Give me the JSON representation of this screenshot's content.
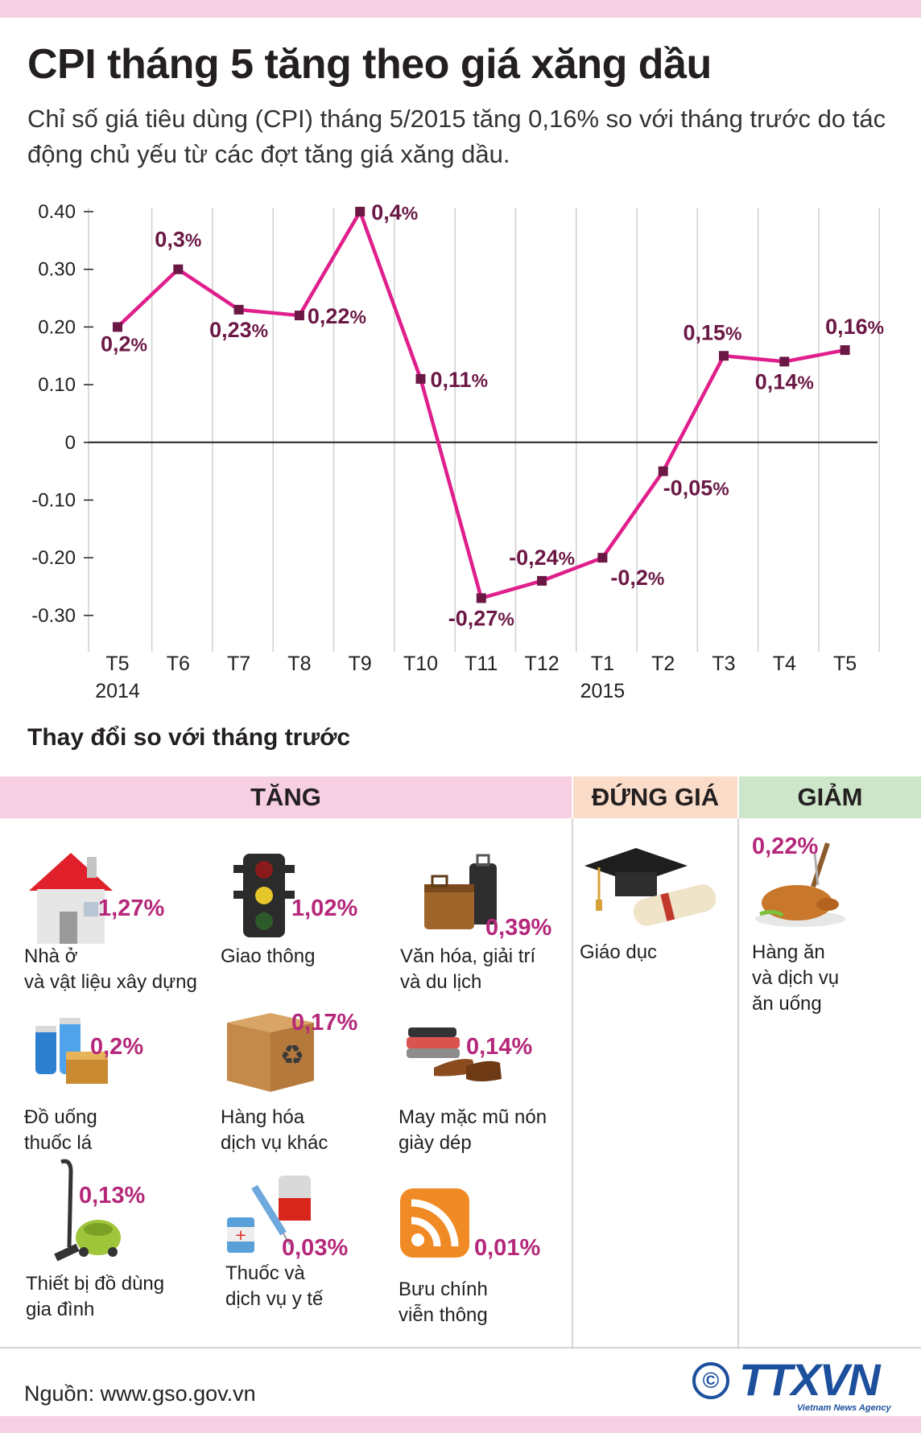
{
  "title": "CPI tháng 5 tăng theo giá xăng dầu",
  "subtitle": "Chỉ số giá tiêu dùng (CPI) tháng 5/2015 tăng 0,16% so với tháng trước do tác động chủ yếu từ các đợt tăng giá xăng dầu.",
  "chart_data": {
    "type": "line",
    "categories": [
      "T5",
      "T6",
      "T7",
      "T8",
      "T9",
      "T10",
      "T11",
      "T12",
      "T1",
      "T2",
      "T3",
      "T4",
      "T5"
    ],
    "year_labels": [
      "2014",
      "",
      "",
      "",
      "",
      "",
      "",
      "",
      "2015",
      "",
      "",
      "",
      ""
    ],
    "values": [
      0.2,
      0.3,
      0.23,
      0.22,
      0.4,
      0.11,
      -0.27,
      -0.24,
      -0.2,
      -0.05,
      0.15,
      0.14,
      0.16
    ],
    "value_labels": [
      "0,2",
      "0,3",
      "0,23",
      "0,22",
      "0,4",
      "0,11",
      "-0,27",
      "-0,24",
      "-0,2",
      "-0,05",
      "0,15",
      "0,14",
      "0,16"
    ],
    "pct_sign": "%",
    "y_ticks": [
      0.4,
      0.3,
      0.2,
      0.1,
      0,
      -0.1,
      -0.2,
      -0.3
    ],
    "y_tick_labels": [
      "0.40",
      "0.30",
      "0.20",
      "0.10",
      "0",
      "-0.10",
      "-0.20",
      "-0.30"
    ],
    "ylim": [
      -0.35,
      0.4
    ],
    "xlabel": "",
    "ylabel": "",
    "grid": true,
    "colors": {
      "line": "#e01e8c",
      "marker": "#6b1845",
      "label": "#6b1845"
    }
  },
  "section_title": "Thay đổi so với tháng trước",
  "categories": {
    "tang": {
      "header": "TĂNG",
      "items": [
        {
          "value": "1,27%",
          "label": "Nhà ở\nvà vật liệu xây dựng",
          "icon": "house-icon"
        },
        {
          "value": "1,02%",
          "label": "Giao thông",
          "icon": "traffic-light-icon"
        },
        {
          "value": "0,39%",
          "label": "Văn hóa, giải trí\nvà du lịch",
          "icon": "luggage-icon"
        },
        {
          "value": "0,2%",
          "label": "Đồ uống\nthuốc lá",
          "icon": "drinks-icon"
        },
        {
          "value": "0,17%",
          "label": "Hàng hóa\ndịch vụ khác",
          "icon": "recycle-box-icon"
        },
        {
          "value": "0,14%",
          "label": "May mặc mũ nón\ngiày dép",
          "icon": "shoes-clothes-icon"
        },
        {
          "value": "0,13%",
          "label": "Thiết bị đồ dùng\ngia đình",
          "icon": "vacuum-cleaner-icon"
        },
        {
          "value": "0,03%",
          "label": "Thuốc và\ndịch vụ y tế",
          "icon": "medicine-icon"
        },
        {
          "value": "0,01%",
          "label": "Bưu chính\nviễn thông",
          "icon": "rss-icon"
        }
      ]
    },
    "dung_gia": {
      "header": "ĐỨNG GIÁ",
      "items": [
        {
          "label": "Giáo dục",
          "icon": "graduation-cap-icon"
        }
      ]
    },
    "giam": {
      "header": "GIẢM",
      "items": [
        {
          "value": "0,22%",
          "label": "Hàng ăn\nvà dịch vụ\năn uống",
          "icon": "roast-chicken-icon"
        }
      ]
    }
  },
  "source": "Nguồn: www.gso.gov.vn",
  "logo": {
    "text": "TTXVN",
    "subtext": "Vietnam News Agency",
    "copyright": "©"
  },
  "colors": {
    "accent_pink": "#f6cfe3",
    "accent_orange": "#fbdcc8",
    "accent_green": "#cde6c9",
    "value_text": "#b5277a"
  }
}
